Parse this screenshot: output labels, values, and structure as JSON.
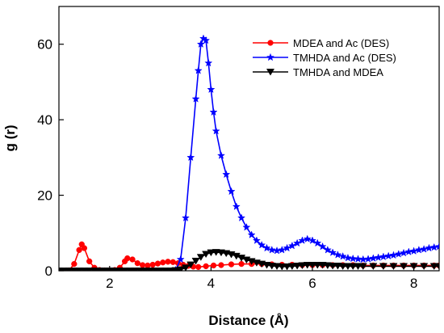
{
  "chart_data": {
    "type": "line",
    "xlabel": "Distance (Å)",
    "ylabel": "g (r)",
    "xlim": [
      1.0,
      8.5
    ],
    "ylim": [
      0,
      70
    ],
    "xticks": [
      2,
      4,
      6,
      8
    ],
    "yticks": [
      0,
      20,
      40,
      60
    ],
    "grid": false,
    "legend_position": "top-right",
    "series": [
      {
        "name": "MDEA and Ac (DES)",
        "color": "#ff0000",
        "marker": "circle",
        "points": [
          [
            1.0,
            0.0
          ],
          [
            1.1,
            0.0
          ],
          [
            1.2,
            0.1
          ],
          [
            1.3,
            1.8
          ],
          [
            1.4,
            5.5
          ],
          [
            1.45,
            7.0
          ],
          [
            1.5,
            6.0
          ],
          [
            1.6,
            2.5
          ],
          [
            1.7,
            0.8
          ],
          [
            1.8,
            0.2
          ],
          [
            1.9,
            0.1
          ],
          [
            2.0,
            0.1
          ],
          [
            2.1,
            0.2
          ],
          [
            2.2,
            0.8
          ],
          [
            2.3,
            2.5
          ],
          [
            2.35,
            3.3
          ],
          [
            2.45,
            3.0
          ],
          [
            2.55,
            2.0
          ],
          [
            2.65,
            1.5
          ],
          [
            2.75,
            1.4
          ],
          [
            2.85,
            1.6
          ],
          [
            2.95,
            1.9
          ],
          [
            3.05,
            2.2
          ],
          [
            3.15,
            2.4
          ],
          [
            3.25,
            2.3
          ],
          [
            3.35,
            2.0
          ],
          [
            3.45,
            1.6
          ],
          [
            3.55,
            1.3
          ],
          [
            3.65,
            1.1
          ],
          [
            3.75,
            1.0
          ],
          [
            3.9,
            1.2
          ],
          [
            4.05,
            1.4
          ],
          [
            4.2,
            1.5
          ],
          [
            4.4,
            1.7
          ],
          [
            4.6,
            1.8
          ],
          [
            4.8,
            1.8
          ],
          [
            5.0,
            1.8
          ],
          [
            5.2,
            1.7
          ],
          [
            5.4,
            1.6
          ],
          [
            5.6,
            1.6
          ],
          [
            5.8,
            1.5
          ],
          [
            6.0,
            1.5
          ],
          [
            6.2,
            1.5
          ],
          [
            6.4,
            1.5
          ],
          [
            6.6,
            1.5
          ],
          [
            6.8,
            1.5
          ],
          [
            7.0,
            1.4
          ],
          [
            7.2,
            1.4
          ],
          [
            7.4,
            1.4
          ],
          [
            7.6,
            1.4
          ],
          [
            7.8,
            1.4
          ],
          [
            8.0,
            1.4
          ],
          [
            8.2,
            1.4
          ],
          [
            8.4,
            1.4
          ],
          [
            8.5,
            1.4
          ]
        ]
      },
      {
        "name": "TMHDA and Ac (DES)",
        "color": "#0000ff",
        "marker": "star",
        "points": [
          [
            3.3,
            0.2
          ],
          [
            3.4,
            3.0
          ],
          [
            3.5,
            14.0
          ],
          [
            3.6,
            30.0
          ],
          [
            3.7,
            45.5
          ],
          [
            3.75,
            53.0
          ],
          [
            3.8,
            60.0
          ],
          [
            3.85,
            61.5
          ],
          [
            3.9,
            61.0
          ],
          [
            3.95,
            55.0
          ],
          [
            4.0,
            48.0
          ],
          [
            4.05,
            42.0
          ],
          [
            4.1,
            37.0
          ],
          [
            4.2,
            30.5
          ],
          [
            4.3,
            25.5
          ],
          [
            4.4,
            21.0
          ],
          [
            4.5,
            17.0
          ],
          [
            4.6,
            14.0
          ],
          [
            4.7,
            11.5
          ],
          [
            4.8,
            9.5
          ],
          [
            4.9,
            8.0
          ],
          [
            5.0,
            6.8
          ],
          [
            5.1,
            6.0
          ],
          [
            5.2,
            5.5
          ],
          [
            5.3,
            5.3
          ],
          [
            5.4,
            5.5
          ],
          [
            5.5,
            6.0
          ],
          [
            5.6,
            6.6
          ],
          [
            5.7,
            7.3
          ],
          [
            5.8,
            8.0
          ],
          [
            5.9,
            8.4
          ],
          [
            6.0,
            8.0
          ],
          [
            6.1,
            7.3
          ],
          [
            6.2,
            6.4
          ],
          [
            6.3,
            5.5
          ],
          [
            6.4,
            4.8
          ],
          [
            6.5,
            4.2
          ],
          [
            6.6,
            3.8
          ],
          [
            6.7,
            3.4
          ],
          [
            6.8,
            3.2
          ],
          [
            6.9,
            3.1
          ],
          [
            7.0,
            3.0
          ],
          [
            7.1,
            3.1
          ],
          [
            7.2,
            3.3
          ],
          [
            7.3,
            3.5
          ],
          [
            7.4,
            3.7
          ],
          [
            7.5,
            3.9
          ],
          [
            7.6,
            4.1
          ],
          [
            7.7,
            4.4
          ],
          [
            7.8,
            4.7
          ],
          [
            7.9,
            5.0
          ],
          [
            8.0,
            5.2
          ],
          [
            8.1,
            5.5
          ],
          [
            8.2,
            5.7
          ],
          [
            8.3,
            6.0
          ],
          [
            8.4,
            6.2
          ],
          [
            8.5,
            6.4
          ]
        ]
      },
      {
        "name": "TMHDA and MDEA",
        "color": "#000000",
        "marker": "triangle-down",
        "points": [
          [
            1.0,
            0.0
          ],
          [
            1.1,
            0.0
          ],
          [
            1.2,
            0.0
          ],
          [
            1.3,
            0.0
          ],
          [
            1.4,
            0.0
          ],
          [
            1.5,
            0.0
          ],
          [
            1.6,
            0.0
          ],
          [
            1.7,
            0.0
          ],
          [
            1.8,
            0.0
          ],
          [
            1.9,
            0.0
          ],
          [
            2.0,
            0.0
          ],
          [
            2.1,
            0.0
          ],
          [
            2.2,
            0.0
          ],
          [
            2.3,
            0.0
          ],
          [
            2.4,
            0.0
          ],
          [
            2.5,
            0.0
          ],
          [
            2.6,
            0.0
          ],
          [
            2.7,
            0.0
          ],
          [
            2.8,
            0.0
          ],
          [
            2.9,
            0.0
          ],
          [
            3.0,
            0.0
          ],
          [
            3.1,
            0.0
          ],
          [
            3.2,
            0.0
          ],
          [
            3.3,
            0.1
          ],
          [
            3.4,
            0.3
          ],
          [
            3.5,
            0.8
          ],
          [
            3.6,
            1.6
          ],
          [
            3.7,
            2.6
          ],
          [
            3.8,
            3.6
          ],
          [
            3.9,
            4.4
          ],
          [
            4.0,
            4.8
          ],
          [
            4.1,
            4.9
          ],
          [
            4.2,
            4.8
          ],
          [
            4.3,
            4.6
          ],
          [
            4.4,
            4.3
          ],
          [
            4.5,
            3.9
          ],
          [
            4.6,
            3.4
          ],
          [
            4.7,
            2.9
          ],
          [
            4.8,
            2.5
          ],
          [
            4.9,
            2.1
          ],
          [
            5.0,
            1.8
          ],
          [
            5.1,
            1.5
          ],
          [
            5.2,
            1.3
          ],
          [
            5.3,
            1.2
          ],
          [
            5.4,
            1.1
          ],
          [
            5.5,
            1.1
          ],
          [
            5.6,
            1.2
          ],
          [
            5.7,
            1.3
          ],
          [
            5.8,
            1.4
          ],
          [
            5.9,
            1.5
          ],
          [
            6.0,
            1.5
          ],
          [
            6.1,
            1.5
          ],
          [
            6.2,
            1.5
          ],
          [
            6.3,
            1.4
          ],
          [
            6.4,
            1.3
          ],
          [
            6.5,
            1.3
          ],
          [
            6.6,
            1.2
          ],
          [
            6.7,
            1.2
          ],
          [
            6.8,
            1.2
          ],
          [
            6.9,
            1.2
          ],
          [
            7.0,
            1.2
          ],
          [
            7.2,
            1.2
          ],
          [
            7.4,
            1.2
          ],
          [
            7.6,
            1.2
          ],
          [
            7.8,
            1.2
          ],
          [
            8.0,
            1.2
          ],
          [
            8.2,
            1.2
          ],
          [
            8.4,
            1.2
          ],
          [
            8.5,
            1.2
          ]
        ]
      }
    ]
  }
}
